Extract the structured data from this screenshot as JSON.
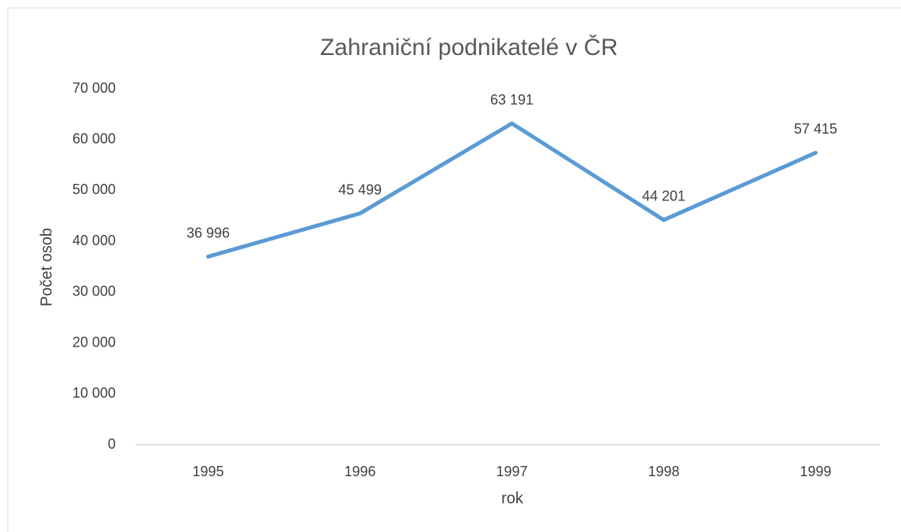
{
  "chart_data": {
    "type": "line",
    "title": "Zahraniční podnikatelé v ČR",
    "x_label": "rok",
    "y_label": "Počet osob",
    "categories": [
      "1995",
      "1996",
      "1997",
      "1998",
      "1999"
    ],
    "series": [
      {
        "name": "Počet osob",
        "color": "#5b9bd5",
        "values": [
          36996,
          45499,
          63191,
          44201,
          57415
        ],
        "value_labels": [
          "36 996",
          "45 499",
          "63 191",
          "44 201",
          "57 415"
        ]
      }
    ],
    "ylim": [
      0,
      70000
    ],
    "yticks": [
      0,
      {
        "value": 10000,
        "label": "10 000"
      },
      {
        "value": 20000,
        "label": "20 000"
      },
      {
        "value": 30000,
        "label": "30 000"
      },
      {
        "value": 40000,
        "label": "40 000"
      },
      {
        "value": 50000,
        "label": "50 000"
      },
      {
        "value": 60000,
        "label": "60 000"
      },
      {
        "value": 70000,
        "label": "70 000"
      }
    ],
    "grid": false
  }
}
